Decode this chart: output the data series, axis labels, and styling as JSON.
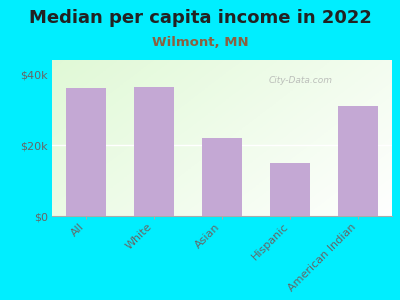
{
  "title": "Median per capita income in 2022",
  "subtitle": "Wilmont, MN",
  "categories": [
    "All",
    "White",
    "Asian",
    "Hispanic",
    "American Indian"
  ],
  "values": [
    36000,
    36500,
    22000,
    15000,
    31000
  ],
  "bar_color": "#c4a8d4",
  "bg_color": "#00EEFF",
  "title_color": "#222222",
  "subtitle_color": "#8B6040",
  "tick_label_color": "#666666",
  "ytick_labels": [
    "$0",
    "$20k",
    "$40k"
  ],
  "ytick_values": [
    0,
    20000,
    40000
  ],
  "ylim": [
    0,
    44000
  ],
  "watermark": "City-Data.com",
  "title_fontsize": 13,
  "subtitle_fontsize": 9.5,
  "tick_fontsize": 8
}
